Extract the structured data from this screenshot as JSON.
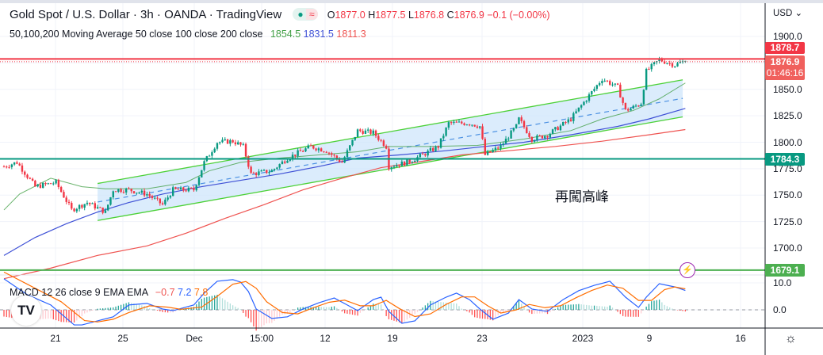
{
  "header": {
    "title": "Gold Spot / U.S. Dollar · 3h · OANDA · TradingView",
    "status_dot": "●",
    "status_wave": "≈",
    "ohlc": {
      "o_label": "O",
      "o": "1877.0",
      "h_label": "H",
      "h": "1877.5",
      "l_label": "L",
      "l": "1876.8",
      "c_label": "C",
      "c": "1876.9",
      "change": "−0.1 (−0.00%)"
    }
  },
  "ma_legend": {
    "label": "50,100,200 Moving Average 50 close 100 close 200 close",
    "v50": "1854.5",
    "v100": "1831.5",
    "v200": "1811.3"
  },
  "macd_legend": {
    "label": "MACD 12 26 close 9 EMA EMA",
    "hist": "−0.7",
    "macd": "7.2",
    "signal": "7.8"
  },
  "price_axis": {
    "currency": "USD ⌄",
    "ticks": [
      "1900.0",
      "1850.0",
      "1825.0",
      "1800.0",
      "1775.0",
      "1750.0",
      "1725.0",
      "1700.0"
    ],
    "macd_ticks": [
      "10.0",
      "0.0"
    ]
  },
  "badges": {
    "resistance": "1878.7",
    "last_price": "1876.9",
    "countdown": "01:46:16",
    "support": "1784.3",
    "support2": "1679.1"
  },
  "time_axis": [
    "21",
    "25",
    "Dec",
    "15:00",
    "12",
    "19",
    "23",
    "2023",
    "9",
    "16"
  ],
  "annotation": "再闖高峰",
  "logo_text": "TV",
  "bolt_icon": "⚡",
  "settings_icon": "☼",
  "colors": {
    "up": "#089981",
    "down": "#f23645",
    "ma50": "#43a047",
    "ma100": "#3f51d6",
    "ma200": "#ef5350",
    "macd": "#2962ff",
    "signal": "#ff6d00",
    "channel": "#4cd137",
    "channel_fill": "#cfe6fb",
    "resistance": "#f23645",
    "support": "#089981",
    "support2": "#4caf50"
  },
  "chart_data": {
    "type": "candlestick",
    "title": "Gold Spot / U.S. Dollar · 3h · OANDA",
    "bars": 262,
    "ylim": [
      1670,
      1910
    ],
    "price_path": [
      [
        0,
        1777
      ],
      [
        5,
        1781
      ],
      [
        12,
        1758
      ],
      [
        20,
        1762
      ],
      [
        26,
        1736
      ],
      [
        32,
        1743
      ],
      [
        39,
        1734
      ],
      [
        42,
        1755
      ],
      [
        48,
        1755
      ],
      [
        55,
        1751
      ],
      [
        61,
        1741
      ],
      [
        65,
        1755
      ],
      [
        73,
        1755
      ],
      [
        77,
        1781
      ],
      [
        82,
        1800
      ],
      [
        88,
        1801
      ],
      [
        92,
        1796
      ],
      [
        95,
        1770
      ],
      [
        103,
        1773
      ],
      [
        109,
        1785
      ],
      [
        118,
        1796
      ],
      [
        124,
        1792
      ],
      [
        130,
        1781
      ],
      [
        136,
        1811
      ],
      [
        142,
        1809
      ],
      [
        147,
        1796
      ],
      [
        148,
        1777
      ],
      [
        155,
        1781
      ],
      [
        161,
        1788
      ],
      [
        167,
        1796
      ],
      [
        171,
        1818
      ],
      [
        179,
        1818
      ],
      [
        183,
        1815
      ],
      [
        185,
        1788
      ],
      [
        191,
        1796
      ],
      [
        197,
        1815
      ],
      [
        198,
        1822
      ],
      [
        203,
        1803
      ],
      [
        209,
        1807
      ],
      [
        218,
        1822
      ],
      [
        224,
        1841
      ],
      [
        230,
        1860
      ],
      [
        236,
        1852
      ],
      [
        239,
        1830
      ],
      [
        242,
        1833
      ],
      [
        245,
        1837
      ],
      [
        247,
        1867
      ],
      [
        252,
        1878
      ],
      [
        258,
        1873
      ],
      [
        262,
        1876.9
      ]
    ],
    "ma50": [
      [
        0,
        1736
      ],
      [
        6,
        1751
      ],
      [
        18,
        1766
      ],
      [
        30,
        1758
      ],
      [
        39,
        1756
      ],
      [
        55,
        1756
      ],
      [
        70,
        1762
      ],
      [
        79,
        1773
      ],
      [
        91,
        1781
      ],
      [
        106,
        1785
      ],
      [
        121,
        1788
      ],
      [
        136,
        1791
      ],
      [
        148,
        1796
      ],
      [
        164,
        1796
      ],
      [
        182,
        1797
      ],
      [
        200,
        1803
      ],
      [
        218,
        1811
      ],
      [
        230,
        1822
      ],
      [
        242,
        1830
      ],
      [
        252,
        1841
      ],
      [
        262,
        1856
      ]
    ],
    "ma100": [
      [
        0,
        1693
      ],
      [
        12,
        1710
      ],
      [
        24,
        1723
      ],
      [
        36,
        1734
      ],
      [
        48,
        1743
      ],
      [
        61,
        1751
      ],
      [
        76,
        1758
      ],
      [
        91,
        1764
      ],
      [
        106,
        1770
      ],
      [
        121,
        1777
      ],
      [
        136,
        1785
      ],
      [
        152,
        1788
      ],
      [
        170,
        1792
      ],
      [
        185,
        1796
      ],
      [
        200,
        1800
      ],
      [
        218,
        1807
      ],
      [
        236,
        1815
      ],
      [
        248,
        1822
      ],
      [
        262,
        1832
      ]
    ],
    "ma200": [
      [
        0,
        1671
      ],
      [
        18,
        1681
      ],
      [
        36,
        1693
      ],
      [
        55,
        1702
      ],
      [
        70,
        1714
      ],
      [
        85,
        1728
      ],
      [
        100,
        1741
      ],
      [
        115,
        1755
      ],
      [
        130,
        1766
      ],
      [
        145,
        1776
      ],
      [
        161,
        1782
      ],
      [
        176,
        1788
      ],
      [
        194,
        1792
      ],
      [
        212,
        1796
      ],
      [
        230,
        1801
      ],
      [
        248,
        1807
      ],
      [
        262,
        1812
      ]
    ],
    "channel": {
      "start_bar": 36,
      "end_bar": 261,
      "upper": [
        1761,
        1859
      ],
      "lower": [
        1726,
        1824
      ]
    },
    "hlines": [
      {
        "name": "resistance",
        "price": 1878.7
      },
      {
        "name": "support",
        "price": 1784.3
      },
      {
        "name": "support2",
        "price": 1679.1
      }
    ],
    "macd": {
      "ylim": [
        -7,
        14
      ],
      "macd": [
        [
          0,
          11.5
        ],
        [
          9,
          5.6
        ],
        [
          18,
          1.8
        ],
        [
          27,
          -5.6
        ],
        [
          30,
          -5.6
        ],
        [
          36,
          -4.1
        ],
        [
          42,
          -2.6
        ],
        [
          48,
          1.8
        ],
        [
          55,
          2.4
        ],
        [
          61,
          0.3
        ],
        [
          65,
          -0.3
        ],
        [
          73,
          1.8
        ],
        [
          77,
          6.2
        ],
        [
          82,
          10.6
        ],
        [
          88,
          11.2
        ],
        [
          91,
          10.3
        ],
        [
          94,
          6.8
        ],
        [
          97,
          0.3
        ],
        [
          103,
          -3.2
        ],
        [
          109,
          -2.6
        ],
        [
          115,
          0.3
        ],
        [
          121,
          2.6
        ],
        [
          127,
          4.4
        ],
        [
          132,
          1.8
        ],
        [
          136,
          -0.3
        ],
        [
          142,
          3.8
        ],
        [
          145,
          4.7
        ],
        [
          148,
          -0.6
        ],
        [
          153,
          -5
        ],
        [
          158,
          -4.1
        ],
        [
          164,
          1.8
        ],
        [
          170,
          4.7
        ],
        [
          174,
          6.2
        ],
        [
          179,
          3.8
        ],
        [
          183,
          0.3
        ],
        [
          188,
          -3.5
        ],
        [
          194,
          -1.2
        ],
        [
          198,
          3.8
        ],
        [
          203,
          0.3
        ],
        [
          209,
          -0.6
        ],
        [
          215,
          3.8
        ],
        [
          221,
          7.1
        ],
        [
          227,
          9.1
        ],
        [
          233,
          10.6
        ],
        [
          239,
          4.7
        ],
        [
          244,
          0.9
        ],
        [
          247,
          4.7
        ],
        [
          252,
          9.7
        ],
        [
          258,
          8.5
        ],
        [
          262,
          7.2
        ]
      ],
      "signal": [
        [
          0,
          14
        ],
        [
          12,
          8
        ],
        [
          22,
          3
        ],
        [
          31,
          -4
        ],
        [
          36,
          -4.5
        ],
        [
          42,
          -3.5
        ],
        [
          48,
          -1
        ],
        [
          56,
          1.5
        ],
        [
          63,
          1
        ],
        [
          68,
          0.2
        ],
        [
          76,
          1
        ],
        [
          82,
          5
        ],
        [
          88,
          9.5
        ],
        [
          93,
          10.5
        ],
        [
          97,
          8
        ],
        [
          101,
          3
        ],
        [
          107,
          -1
        ],
        [
          113,
          -1.5
        ],
        [
          119,
          0.8
        ],
        [
          125,
          2.8
        ],
        [
          131,
          3.6
        ],
        [
          137,
          1.5
        ],
        [
          142,
          1.5
        ],
        [
          147,
          3.5
        ],
        [
          152,
          0.5
        ],
        [
          158,
          -2.5
        ],
        [
          164,
          -1.5
        ],
        [
          170,
          2
        ],
        [
          176,
          4.8
        ],
        [
          181,
          4.8
        ],
        [
          186,
          1.5
        ],
        [
          191,
          -1.2
        ],
        [
          197,
          0
        ],
        [
          202,
          2
        ],
        [
          208,
          0.8
        ],
        [
          214,
          1.5
        ],
        [
          220,
          4.5
        ],
        [
          226,
          7.2
        ],
        [
          232,
          9.2
        ],
        [
          238,
          8
        ],
        [
          244,
          3.5
        ],
        [
          249,
          3.5
        ],
        [
          254,
          7.5
        ],
        [
          258,
          8.5
        ],
        [
          262,
          7.8
        ]
      ]
    }
  }
}
